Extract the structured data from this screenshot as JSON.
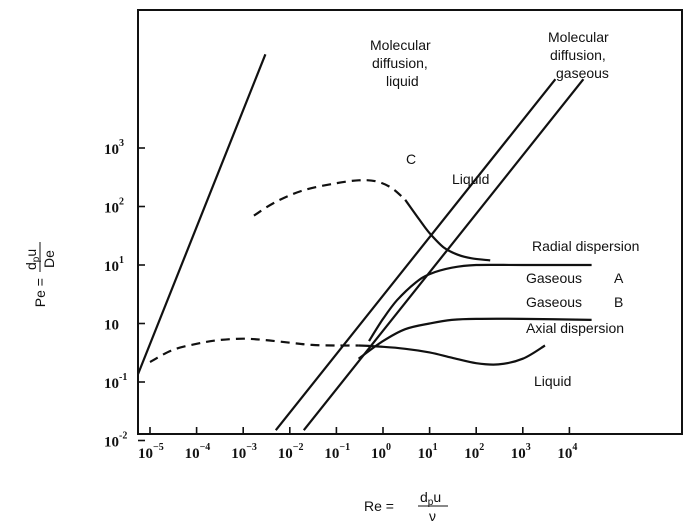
{
  "chart_data": {
    "type": "line",
    "x_scale": "log",
    "y_scale": "log",
    "xlim": [
      3e-06,
      30000
    ],
    "ylim": [
      0.01,
      30000
    ],
    "x_ticks": [
      {
        "value": 1e-05,
        "base": "10",
        "exp": "−5"
      },
      {
        "value": 0.0001,
        "base": "10",
        "exp": "−4"
      },
      {
        "value": 0.001,
        "base": "10",
        "exp": "−3"
      },
      {
        "value": 0.01,
        "base": "10",
        "exp": "−2"
      },
      {
        "value": 0.1,
        "base": "10",
        "exp": "−1"
      },
      {
        "value": 1,
        "base": "10",
        "exp": "0"
      },
      {
        "value": 10,
        "base": "10",
        "exp": "1"
      },
      {
        "value": 100,
        "base": "10",
        "exp": "2"
      },
      {
        "value": 1000,
        "base": "10",
        "exp": "3"
      },
      {
        "value": 10000,
        "base": "10",
        "exp": "4"
      }
    ],
    "y_ticks": [
      {
        "value": 1000,
        "base": "10",
        "exp": "3"
      },
      {
        "value": 100,
        "base": "10",
        "exp": "2"
      },
      {
        "value": 10,
        "base": "10",
        "exp": "1"
      },
      {
        "value": 1,
        "base": "10",
        "exp": ""
      },
      {
        "value": 0.1,
        "base": "10",
        "exp": "-1"
      },
      {
        "value": 0.01,
        "base": "10",
        "exp": "-2"
      }
    ],
    "xlabel": {
      "prefix": "Re =",
      "numerator": "d",
      "numerator_sub": "p",
      "numerator_tail": "u",
      "denominator": "ν"
    },
    "ylabel": {
      "prefix": "Pe =",
      "numerator": "d",
      "numerator_sub": "p",
      "numerator_tail": "u",
      "denominator": "De"
    },
    "series": [
      {
        "key": "mol-liquid",
        "style": "solid",
        "x": [
          3e-06,
          0.003
        ],
        "y": [
          0.04,
          40000
        ]
      },
      {
        "key": "mol-gas-1",
        "style": "solid",
        "x": [
          0.005,
          5000
        ],
        "y": [
          0.015,
          15000
        ]
      },
      {
        "key": "mol-gas-2",
        "style": "solid",
        "x": [
          0.02,
          20000
        ],
        "y": [
          0.015,
          15000
        ]
      },
      {
        "key": "radial-liquid",
        "style": "dashed",
        "x": [
          0.0017,
          0.005,
          0.02,
          0.1,
          0.3,
          0.7,
          1.5,
          3
        ],
        "y": [
          70,
          120,
          190,
          250,
          280,
          270,
          210,
          130
        ]
      },
      {
        "key": "radial-liquid-drop",
        "style": "solid",
        "x": [
          3,
          6,
          10,
          20,
          40,
          80,
          200
        ],
        "y": [
          130,
          60,
          35,
          20,
          15,
          13,
          12
        ]
      },
      {
        "key": "radial-gaseous",
        "style": "solid",
        "x": [
          0.5,
          1,
          2,
          5,
          10,
          30,
          100,
          1000,
          30000
        ],
        "y": [
          0.5,
          1.2,
          2.5,
          5,
          7,
          9,
          10,
          10,
          10
        ]
      },
      {
        "key": "axial-gaseous",
        "style": "solid",
        "x": [
          0.3,
          1,
          3,
          10,
          30,
          100,
          1000,
          30000
        ],
        "y": [
          0.25,
          0.5,
          0.8,
          1.0,
          1.15,
          1.2,
          1.2,
          1.15
        ]
      },
      {
        "key": "axial-liquid",
        "style": "dashed",
        "x": [
          1e-05,
          3e-05,
          0.0001,
          0.0003,
          0.001,
          0.003,
          0.01,
          0.03,
          0.1,
          0.3
        ],
        "y": [
          0.22,
          0.35,
          0.45,
          0.52,
          0.55,
          0.52,
          0.47,
          0.43,
          0.42,
          0.42
        ]
      },
      {
        "key": "axial-liquid-tail",
        "style": "solid",
        "x": [
          0.3,
          1,
          3,
          10,
          30,
          100,
          300,
          1000,
          3000
        ],
        "y": [
          0.42,
          0.4,
          0.37,
          0.32,
          0.26,
          0.21,
          0.2,
          0.25,
          0.42
        ]
      }
    ],
    "annotations": [
      {
        "key": "mol-liquid-1",
        "text": "Molecular"
      },
      {
        "key": "mol-liquid-2",
        "text": "diffusion,"
      },
      {
        "key": "mol-liquid-3",
        "text": "liquid"
      },
      {
        "key": "mol-gas-1",
        "text": "Molecular"
      },
      {
        "key": "mol-gas-2",
        "text": "diffusion,"
      },
      {
        "key": "mol-gas-3",
        "text": "gaseous"
      },
      {
        "key": "c",
        "text": "C"
      },
      {
        "key": "liquid-top",
        "text": "Liquid"
      },
      {
        "key": "radial",
        "text": "Radial dispersion"
      },
      {
        "key": "gaseous-a",
        "text": "Gaseous"
      },
      {
        "key": "a",
        "text": "A"
      },
      {
        "key": "gaseous-b",
        "text": "Gaseous"
      },
      {
        "key": "b",
        "text": "B"
      },
      {
        "key": "axial",
        "text": "Axial dispersion"
      },
      {
        "key": "liquid-bottom",
        "text": "Liquid"
      }
    ]
  }
}
